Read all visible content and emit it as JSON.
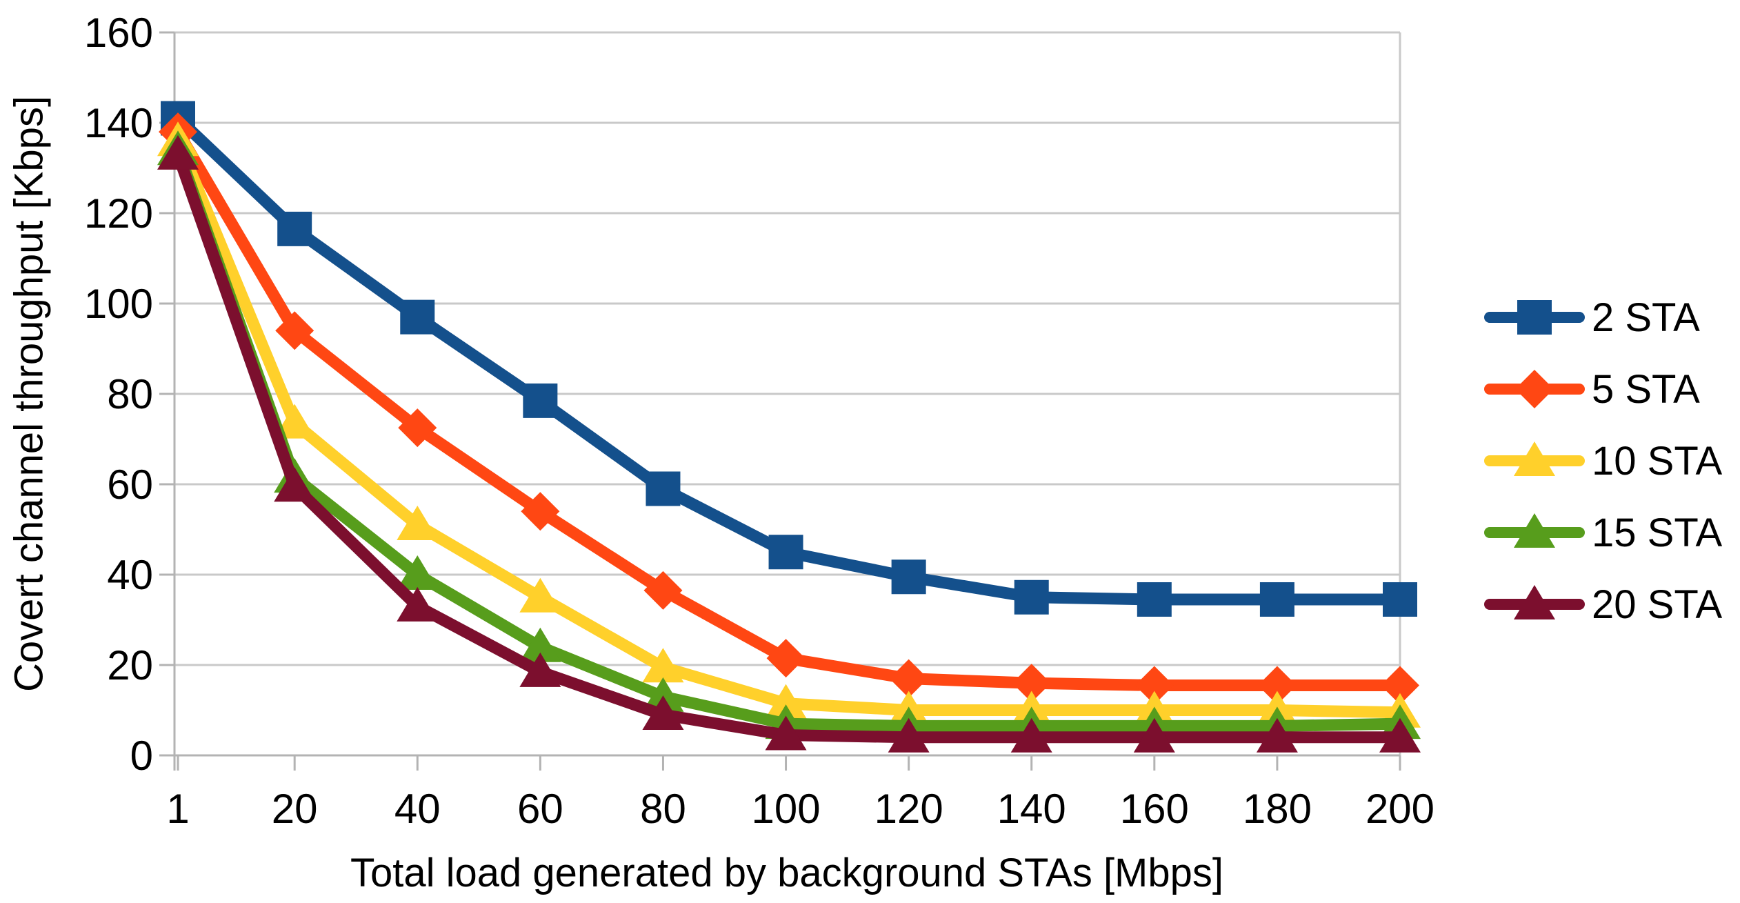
{
  "chart_data": {
    "type": "line",
    "title": "",
    "xlabel": "Total load generated by background STAs [Mbps]",
    "ylabel": "Covert channel throughput [Kbps]",
    "x": [
      1,
      20,
      40,
      60,
      80,
      100,
      120,
      140,
      160,
      180,
      200
    ],
    "x_tick_labels": [
      "1",
      "20",
      "40",
      "60",
      "80",
      "100",
      "120",
      "140",
      "160",
      "180",
      "200"
    ],
    "y_ticks": [
      0,
      20,
      40,
      60,
      80,
      100,
      120,
      140,
      160
    ],
    "xlim": [
      0,
      200
    ],
    "ylim": [
      0,
      160
    ],
    "grid": "horizontal",
    "legend_position": "right",
    "series": [
      {
        "name": "2 STA",
        "marker": "square",
        "color": "#14508C",
        "values": [
          141,
          116.5,
          97,
          78.5,
          59,
          45,
          39.5,
          35,
          34.5,
          34.5,
          34.5
        ]
      },
      {
        "name": "5 STA",
        "marker": "diamond",
        "color": "#FF4713",
        "values": [
          138,
          94,
          72.5,
          54,
          36.5,
          21.5,
          17,
          16,
          15.5,
          15.5,
          15.5
        ]
      },
      {
        "name": "10 STA",
        "marker": "triangle",
        "color": "#FFD02B",
        "values": [
          136,
          73.5,
          51,
          35,
          19.5,
          11.5,
          10,
          10,
          10,
          10,
          9.5
        ]
      },
      {
        "name": "15 STA",
        "marker": "triangle",
        "color": "#579D1C",
        "values": [
          134,
          61.5,
          40,
          24,
          13,
          7,
          6.5,
          6.5,
          6.5,
          6.5,
          7
        ]
      },
      {
        "name": "20 STA",
        "marker": "triangle",
        "color": "#7C0F2E",
        "values": [
          133,
          59.5,
          33,
          18.5,
          9,
          4.5,
          4,
          4,
          4,
          4,
          4
        ]
      }
    ]
  },
  "style": {
    "grid_color": "#c9c9c9",
    "axis_color": "#b3b3b3",
    "text_color": "#000000",
    "background": "#ffffff"
  }
}
